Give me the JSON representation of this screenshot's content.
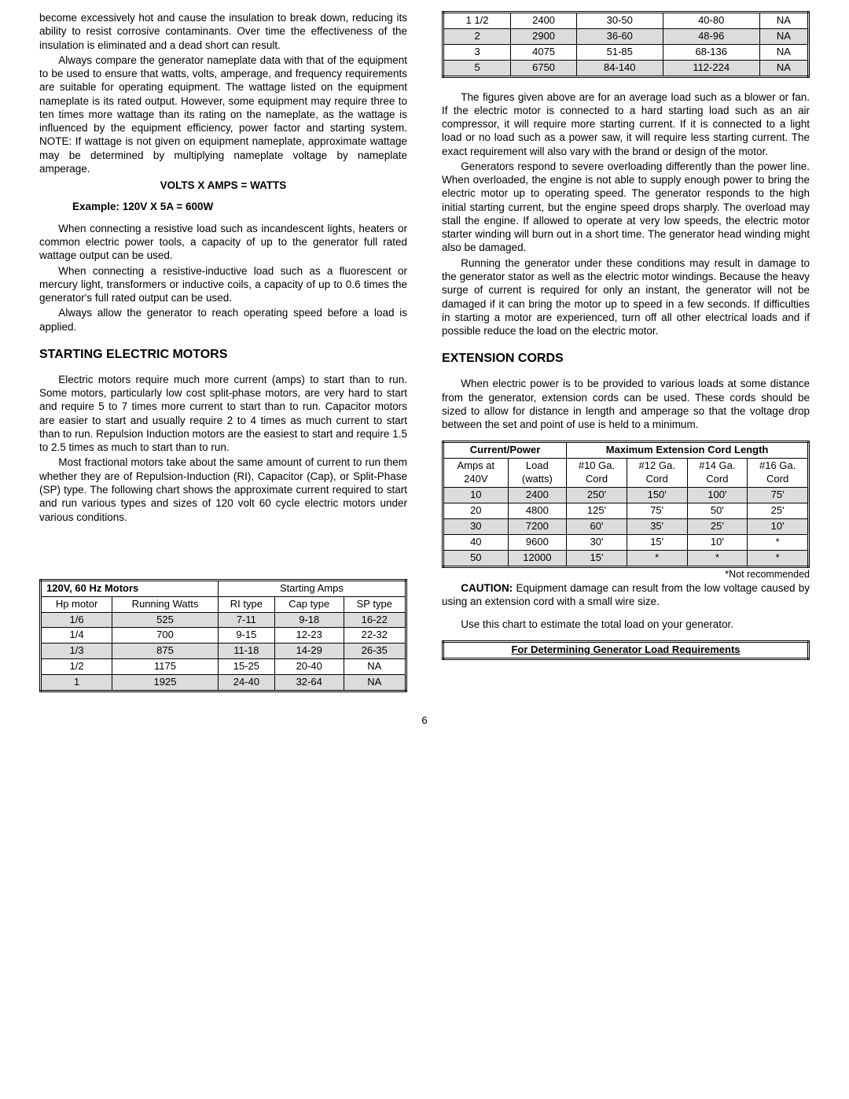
{
  "col1": {
    "p1": "become excessively hot and cause the insulation to break down, reducing its ability to resist corrosive contaminants.  Over time the effectiveness of the insulation is eliminated and a dead short can result.",
    "p2": "Always compare the generator nameplate data with that of the equipment to be used to ensure that watts, volts, amperage, and frequency requirements are suitable for operating equipment. The wattage listed on the equipment nameplate is its rated output.  However, some equipment may require three to ten times more wattage than its rating on the nameplate, as the wattage is influenced by the equipment efficiency, power factor and starting system.  NOTE:  If wattage is not given on equipment nameplate, approximate wattage may be determined by multiplying nameplate voltage by nameplate amperage.",
    "formula_line1": "VOLTS  X  AMPS   =  WATTS",
    "formula_line2": "Example:   120V     X  5A         =  600W",
    "p3": "When connecting a resistive  load such as incandescent lights, heaters or common electric power tools, a capacity of up to the generator full rated wattage output can be used.",
    "p4": "When connecting a resistive-inductive load such as a fluorescent or mercury light, transformers or inductive coils, a capacity of up to 0.6 times the generator's full rated output can be used.",
    "p5": "Always allow the generator to reach operating speed before a load is applied.",
    "h_motors": "STARTING ELECTRIC MOTORS",
    "p6": "Electric motors require much more current (amps) to start than to run.  Some motors, particularly low cost split-phase motors, are very hard to start and require 5 to 7 times more current to start than to run.  Capacitor motors are easier to start and usually require 2 to 4 times as much current to start than to run.  Repulsion Induction motors are the easiest to start and require 1.5 to 2.5 times as much to start than to run.",
    "p7": "Most fractional motors take about the same amount of current to run them whether they are of Repulsion-Induction (RI), Capacitor (Cap), or Split-Phase (SP) type.  The following chart shows the approximate current required to start and run various types and sizes of 120 volt 60 cycle electric motors under various conditions."
  },
  "motor_table": {
    "hdr_left": "120V, 60 Hz Motors",
    "hdr_right": "Starting Amps",
    "hp_label": "Hp motor",
    "run_label": "Running Watts",
    "ri": "RI type",
    "cap": "Cap type",
    "sp": "SP type",
    "rows": [
      {
        "hp": "1/6",
        "rw": "525",
        "ri": "7-11",
        "cap": "9-18",
        "sp": "16-22",
        "shade": true
      },
      {
        "hp": "1/4",
        "rw": "700",
        "ri": "9-15",
        "cap": "12-23",
        "sp": "22-32",
        "shade": false
      },
      {
        "hp": "1/3",
        "rw": "875",
        "ri": "11-18",
        "cap": "14-29",
        "sp": "26-35",
        "shade": true
      },
      {
        "hp": "1/2",
        "rw": "1175",
        "ri": "15-25",
        "cap": "20-40",
        "sp": "NA",
        "shade": false
      },
      {
        "hp": "1",
        "rw": "1925",
        "ri": "24-40",
        "cap": "32-64",
        "sp": "NA",
        "shade": true
      }
    ]
  },
  "motor_table_cont": {
    "rows": [
      {
        "hp": "1 1/2",
        "rw": "2400",
        "ri": "30-50",
        "cap": "40-80",
        "sp": "NA",
        "shade": false
      },
      {
        "hp": "2",
        "rw": "2900",
        "ri": "36-60",
        "cap": "48-96",
        "sp": "NA",
        "shade": true
      },
      {
        "hp": "3",
        "rw": "4075",
        "ri": "51-85",
        "cap": "68-136",
        "sp": "NA",
        "shade": false
      },
      {
        "hp": "5",
        "rw": "6750",
        "ri": "84-140",
        "cap": "112-224",
        "sp": "NA",
        "shade": true
      }
    ]
  },
  "col2": {
    "p1": "The figures given above are for an average load such as a blower or fan.  If the electric motor is connected to a hard starting load such as an air compressor, it will require more starting current.  If it is connected to a light load or no load such as a power saw, it will require less starting current.  The exact requirement will also vary with the brand or design of the motor.",
    "p2": "Generators respond to severe overloading differently than the power line.  When overloaded, the engine is not able to supply enough power to bring the electric motor up to operating speed.  The generator responds to the high initial starting current, but the engine speed drops sharply.  The overload may stall the engine.  If allowed to operate at very low speeds, the electric motor starter winding will burn out in a short time.  The generator head winding might also be damaged.",
    "p3": "Running the generator under these conditions may result in damage to the generator stator as well as the electric motor windings.  Because the heavy surge of current is required for only an instant, the generator will not be damaged if it can bring the motor up to speed in a few seconds.  If difficulties in starting a motor are experienced, turn off all other electrical loads and if possible reduce the load on the electric motor.",
    "h_cords": "EXTENSION CORDS",
    "p4": "When electric power is to be provided to various loads at some distance from the generator, extension cords can be used.  These cords should be sized to allow for distance in length and amperage so that the voltage drop between the set and point of use is held to a minimum.",
    "not_rec": "*Not recommended",
    "caution_label": "CAUTION:",
    "caution_text": " Equipment damage can result from the low voltage caused by using an extension cord with a small wire size.",
    "p5": "Use this chart to estimate the total load on your generator.",
    "load_req": "For Determining Generator Load Requirements"
  },
  "cord_table": {
    "hdr_left": "Current/Power",
    "hdr_right": "Maximum Extension Cord Length",
    "amps": "Amps at 240V",
    "load": "Load (watts)",
    "g10": "#10 Ga. Cord",
    "g12": "#12 Ga. Cord",
    "g14": "#14 Ga. Cord",
    "g16": "#16 Ga. Cord",
    "rows": [
      {
        "a": "10",
        "w": "2400",
        "c10": "250'",
        "c12": "150'",
        "c14": "100'",
        "c16": "75'",
        "shade": true
      },
      {
        "a": "20",
        "w": "4800",
        "c10": "125'",
        "c12": "75'",
        "c14": "50'",
        "c16": "25'",
        "shade": false
      },
      {
        "a": "30",
        "w": "7200",
        "c10": "60'",
        "c12": "35'",
        "c14": "25'",
        "c16": "10'",
        "shade": true
      },
      {
        "a": "40",
        "w": "9600",
        "c10": "30'",
        "c12": "15'",
        "c14": "10'",
        "c16": "*",
        "shade": false
      },
      {
        "a": "50",
        "w": "12000",
        "c10": "15'",
        "c12": "*",
        "c14": "*",
        "c16": "*",
        "shade": true
      }
    ]
  },
  "page_number": "6"
}
